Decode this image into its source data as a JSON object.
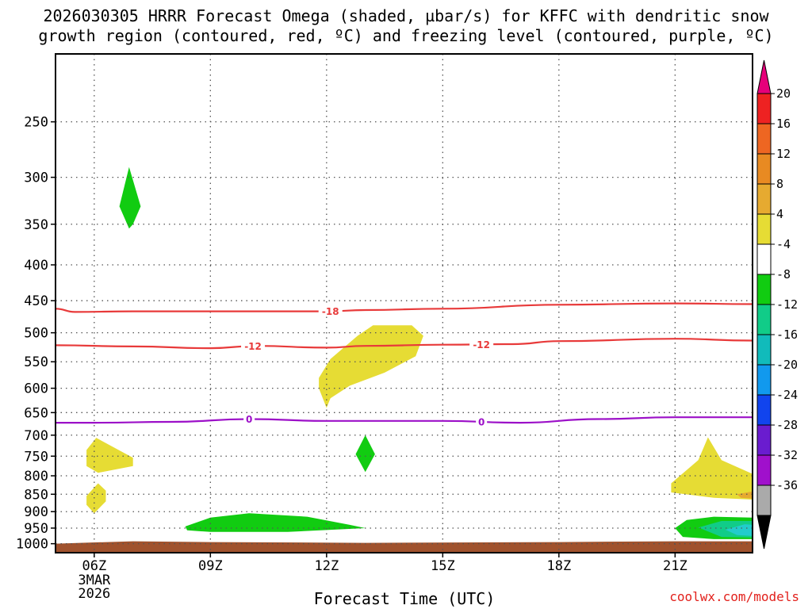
{
  "chart_data": {
    "type": "time-height-cross-section",
    "title_line1": "2026030305 HRRR Forecast Omega (shaded, µbar/s) for KFFC with dendritic snow",
    "title_line2": "growth region (contoured, red, ºC) and freezing level (contoured, purple, ºC)",
    "xlabel": "Forecast Time (UTC)",
    "x_ticks": [
      {
        "hour": 6,
        "label": "06Z",
        "sublabels": [
          "3MAR",
          "2026"
        ]
      },
      {
        "hour": 9,
        "label": "09Z"
      },
      {
        "hour": 12,
        "label": "12Z"
      },
      {
        "hour": 15,
        "label": "15Z"
      },
      {
        "hour": 18,
        "label": "18Z"
      },
      {
        "hour": 21,
        "label": "21Z"
      }
    ],
    "x_range_hours": [
      5,
      23
    ],
    "y_ticks": [
      250,
      300,
      350,
      400,
      450,
      500,
      550,
      600,
      650,
      700,
      750,
      800,
      850,
      900,
      950,
      1000
    ],
    "y_range_hpa": [
      1030,
      200
    ],
    "grid": true,
    "colorbar": {
      "levels": [
        {
          "label": "20",
          "color": "#ee2222"
        },
        {
          "label": "16",
          "color": "#ee6622"
        },
        {
          "label": "12",
          "color": "#e88a22"
        },
        {
          "label": "8",
          "color": "#e6aa30"
        },
        {
          "label": "4",
          "color": "#e6dc34"
        },
        {
          "label": "-4",
          "color": "#ffffff"
        },
        {
          "label": "-8",
          "color": "#11cc11"
        },
        {
          "label": "-12",
          "color": "#11cc88"
        },
        {
          "label": "-16",
          "color": "#11bbbb"
        },
        {
          "label": "-20",
          "color": "#1199ee"
        },
        {
          "label": "-24",
          "color": "#1144ee"
        },
        {
          "label": "-28",
          "color": "#6a1ccf"
        },
        {
          "label": "-32",
          "color": "#a010cc"
        },
        {
          "label": "-36",
          "color": "#aaaaaa"
        }
      ],
      "top_arrow_color": "#e6007a",
      "bottom_arrow_color": "#000000",
      "top_arrow_label": "",
      "bottom_arrow_label": ""
    },
    "contours": [
      {
        "name": "dendritic-top",
        "label": "-18",
        "color": "#e83a3a",
        "points": [
          [
            5,
            462
          ],
          [
            5.5,
            467
          ],
          [
            7,
            466
          ],
          [
            9,
            466
          ],
          [
            11,
            466
          ],
          [
            12,
            466
          ],
          [
            13,
            464
          ],
          [
            15,
            462
          ],
          [
            18,
            456
          ],
          [
            21,
            454
          ],
          [
            23,
            455
          ]
        ],
        "label_hour": 12.1
      },
      {
        "name": "dendritic-bottom",
        "label": "-12",
        "color": "#e83a3a",
        "points": [
          [
            5,
            521
          ],
          [
            7,
            523
          ],
          [
            9,
            526
          ],
          [
            10.2,
            522
          ],
          [
            12,
            525
          ],
          [
            13,
            522
          ],
          [
            15,
            520
          ],
          [
            16.8,
            519
          ],
          [
            18,
            514
          ],
          [
            21,
            510
          ],
          [
            23,
            513
          ]
        ],
        "label_hour": 10.1,
        "label_hour2": 16.0
      },
      {
        "name": "freezing-level",
        "label": "0",
        "color": "#9c10c8",
        "points": [
          [
            5,
            672
          ],
          [
            6,
            672
          ],
          [
            8,
            670
          ],
          [
            10,
            664
          ],
          [
            12,
            668
          ],
          [
            15,
            668
          ],
          [
            17,
            672
          ],
          [
            19,
            664
          ],
          [
            21,
            660
          ],
          [
            23,
            660
          ]
        ],
        "label_hour": 10.0,
        "label_hour2": 16.0
      }
    ],
    "omega_regions": [
      {
        "name": "green-upper-left",
        "level": "-4",
        "color": "#11cc11",
        "polygon": [
          [
            6.65,
            330
          ],
          [
            6.9,
            290
          ],
          [
            7.2,
            330
          ],
          [
            7.0,
            350
          ],
          [
            6.9,
            355
          ]
        ]
      },
      {
        "name": "yellow-middle",
        "level": "4",
        "color": "#e6dc34",
        "polygon": [
          [
            11.8,
            580
          ],
          [
            12.1,
            545
          ],
          [
            12.8,
            505
          ],
          [
            13.2,
            488
          ],
          [
            14.2,
            488
          ],
          [
            14.5,
            505
          ],
          [
            14.3,
            540
          ],
          [
            13.5,
            570
          ],
          [
            12.6,
            595
          ],
          [
            12.1,
            620
          ],
          [
            12.0,
            640
          ],
          [
            11.8,
            600
          ]
        ]
      },
      {
        "name": "yellow-left-upper",
        "level": "4",
        "color": "#e6dc34",
        "polygon": [
          [
            5.8,
            735
          ],
          [
            6.05,
            706
          ],
          [
            7.0,
            754
          ],
          [
            7.0,
            775
          ],
          [
            6.1,
            792
          ],
          [
            5.8,
            775
          ]
        ]
      },
      {
        "name": "yellow-left-lower",
        "level": "4",
        "color": "#e6dc34",
        "polygon": [
          [
            5.8,
            855
          ],
          [
            6.1,
            820
          ],
          [
            6.3,
            840
          ],
          [
            6.3,
            870
          ],
          [
            6.0,
            905
          ],
          [
            5.8,
            880
          ]
        ]
      },
      {
        "name": "green-middle",
        "level": "-4",
        "color": "#11cc11",
        "polygon": [
          [
            12.75,
            745
          ],
          [
            13.0,
            700
          ],
          [
            13.25,
            745
          ],
          [
            13.0,
            790
          ]
        ]
      },
      {
        "name": "green-low",
        "level": "-4",
        "color": "#11cc11",
        "polygon": [
          [
            8.35,
            945
          ],
          [
            9.0,
            918
          ],
          [
            10.0,
            905
          ],
          [
            11.5,
            915
          ],
          [
            12.6,
            940
          ],
          [
            13.0,
            950
          ],
          [
            11.0,
            962
          ],
          [
            9.0,
            962
          ],
          [
            8.4,
            957
          ]
        ]
      },
      {
        "name": "yellow-right",
        "level": "4",
        "color": "#e6dc34",
        "polygon": [
          [
            20.9,
            820
          ],
          [
            21.6,
            760
          ],
          [
            21.85,
            705
          ],
          [
            22.2,
            760
          ],
          [
            23.0,
            795
          ],
          [
            23.0,
            865
          ],
          [
            22.0,
            860
          ],
          [
            20.9,
            845
          ]
        ]
      },
      {
        "name": "orange-right",
        "level": "8",
        "color": "#e6aa30",
        "polygon": [
          [
            22.6,
            850
          ],
          [
            23.0,
            842
          ],
          [
            23.0,
            862
          ],
          [
            22.7,
            860
          ]
        ]
      },
      {
        "name": "green-right",
        "level": "-4",
        "color": "#11cc11",
        "polygon": [
          [
            21.0,
            950
          ],
          [
            21.3,
            925
          ],
          [
            22.0,
            915
          ],
          [
            23.0,
            918
          ],
          [
            23.0,
            985
          ],
          [
            22.0,
            985
          ],
          [
            21.2,
            978
          ]
        ]
      },
      {
        "name": "teal-right",
        "level": "-8",
        "color": "#11cc88",
        "polygon": [
          [
            21.6,
            948
          ],
          [
            22.2,
            928
          ],
          [
            23.0,
            928
          ],
          [
            23.0,
            980
          ],
          [
            22.2,
            978
          ]
        ]
      },
      {
        "name": "cyan-right",
        "level": "-12",
        "color": "#22cccc",
        "polygon": [
          [
            22.3,
            955
          ],
          [
            22.8,
            938
          ],
          [
            23.0,
            940
          ],
          [
            23.0,
            975
          ],
          [
            22.6,
            972
          ]
        ]
      }
    ],
    "terrain": {
      "color": "#a0522d",
      "top_hpa": 992
    }
  },
  "watermark": "coolwx.com/models"
}
